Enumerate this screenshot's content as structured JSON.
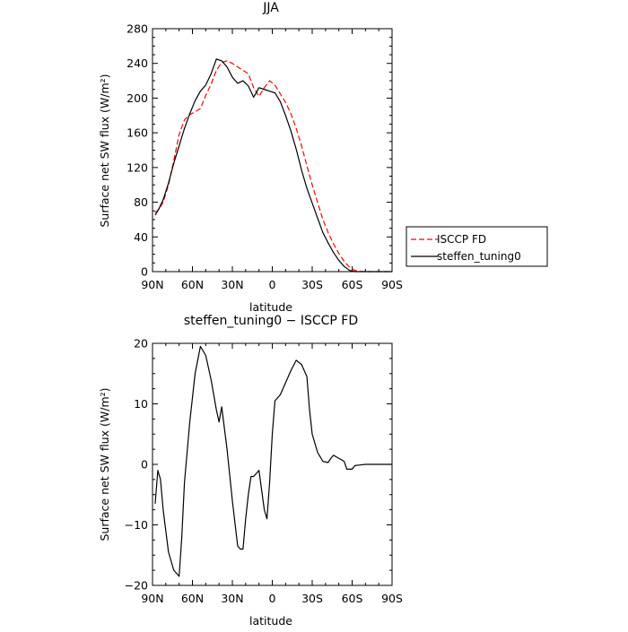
{
  "chart_data": [
    {
      "type": "line",
      "title": "JJA",
      "xlabel": "latitude",
      "ylabel": "Surface net SW flux (W/m²)",
      "xlim": [
        90,
        -90
      ],
      "ylim": [
        0,
        280
      ],
      "xticks": [
        90,
        60,
        30,
        0,
        -30,
        -60,
        -90
      ],
      "xtick_labels": [
        "90N",
        "60N",
        "30N",
        "0",
        "30S",
        "60S",
        "90S"
      ],
      "yticks": [
        0,
        40,
        80,
        120,
        160,
        200,
        240,
        280
      ],
      "ytick_labels": [
        "0",
        "40",
        "80",
        "120",
        "160",
        "200",
        "240",
        "280"
      ],
      "legend": "right",
      "series": [
        {
          "name": "ISCCP FD",
          "color": "#ff0000",
          "style": "dashed",
          "x": [
            88,
            85,
            82,
            78,
            74,
            70,
            66,
            62,
            58,
            54,
            50,
            46,
            42,
            38,
            34,
            30,
            26,
            22,
            18,
            14,
            10,
            6,
            2,
            -2,
            -6,
            -10,
            -14,
            -18,
            -22,
            -26,
            -30,
            -34,
            -38,
            -42,
            -46,
            -50,
            -54,
            -58,
            -62,
            -66,
            -70,
            -74,
            -78,
            -82,
            -86,
            -90
          ],
          "y": [
            68,
            72,
            80,
            100,
            128,
            158,
            175,
            181,
            184,
            188,
            203,
            216,
            232,
            241,
            243,
            240,
            236,
            232,
            228,
            212,
            202,
            212,
            220,
            215,
            205,
            195,
            182,
            165,
            145,
            122,
            100,
            80,
            60,
            45,
            32,
            21,
            12,
            5,
            1.5,
            0.3,
            0,
            0,
            0,
            0,
            0,
            0
          ]
        },
        {
          "name": "steffen_tuning0",
          "color": "#000000",
          "style": "solid",
          "x": [
            88,
            85,
            82,
            78,
            74,
            70,
            66,
            62,
            58,
            54,
            50,
            46,
            42,
            38,
            34,
            30,
            26,
            22,
            18,
            14,
            10,
            6,
            2,
            -2,
            -6,
            -10,
            -14,
            -18,
            -22,
            -26,
            -30,
            -34,
            -38,
            -42,
            -46,
            -50,
            -54,
            -58,
            -62,
            -66,
            -70,
            -74,
            -78,
            -82,
            -86,
            -90
          ],
          "y": [
            65,
            73,
            83,
            102,
            125,
            145,
            165,
            182,
            197,
            208,
            215,
            228,
            245,
            243,
            236,
            224,
            217,
            220,
            214,
            201,
            212,
            210,
            208,
            206,
            196,
            180,
            162,
            141,
            117,
            96,
            79,
            62,
            45,
            33,
            22,
            13,
            6,
            1.5,
            0,
            0,
            0,
            0,
            0,
            0,
            0,
            0
          ]
        }
      ]
    },
    {
      "type": "line",
      "title": "steffen_tuning0 − ISCCP FD",
      "xlabel": "latitude",
      "ylabel": "Surface net SW flux (W/m²)",
      "xlim": [
        90,
        -90
      ],
      "ylim": [
        -20,
        20
      ],
      "xticks": [
        90,
        60,
        30,
        0,
        -30,
        -60,
        -90
      ],
      "xtick_labels": [
        "90N",
        "60N",
        "30N",
        "0",
        "30S",
        "60S",
        "90S"
      ],
      "yticks": [
        -20,
        -10,
        0,
        10,
        20
      ],
      "ytick_labels": [
        "−20",
        "−10",
        "0",
        "10",
        "20"
      ],
      "series": [
        {
          "color": "#000000",
          "style": "solid",
          "x": [
            88,
            86,
            84,
            82,
            78,
            74,
            70,
            68,
            66,
            62,
            58,
            54,
            50,
            46,
            42,
            40,
            38,
            34,
            30,
            26,
            24,
            22,
            20,
            18,
            16,
            14,
            10,
            6,
            4,
            2,
            0,
            -2,
            -6,
            -10,
            -14,
            -18,
            -22,
            -26,
            -28,
            -30,
            -34,
            -38,
            -42,
            -44,
            -46,
            -50,
            -54,
            -56,
            -60,
            -62,
            -66,
            -70,
            -74,
            -80,
            -86,
            -90
          ],
          "y": [
            -6.5,
            -1,
            -2.5,
            -7.5,
            -14.5,
            -17.5,
            -18.5,
            -12,
            -3,
            7,
            15,
            19.5,
            18,
            14,
            9,
            7,
            9.5,
            2.5,
            -6,
            -13.5,
            -14,
            -14,
            -9,
            -5,
            -2,
            -2,
            -1,
            -7.5,
            -9,
            -3,
            5,
            10.5,
            11.5,
            13.5,
            15.5,
            17.2,
            16.5,
            14.5,
            9,
            5,
            2,
            0.5,
            0.3,
            1,
            1.5,
            1,
            0.5,
            -0.8,
            -0.8,
            -0.2,
            -0.1,
            0,
            0,
            0,
            0,
            0
          ]
        }
      ]
    }
  ]
}
